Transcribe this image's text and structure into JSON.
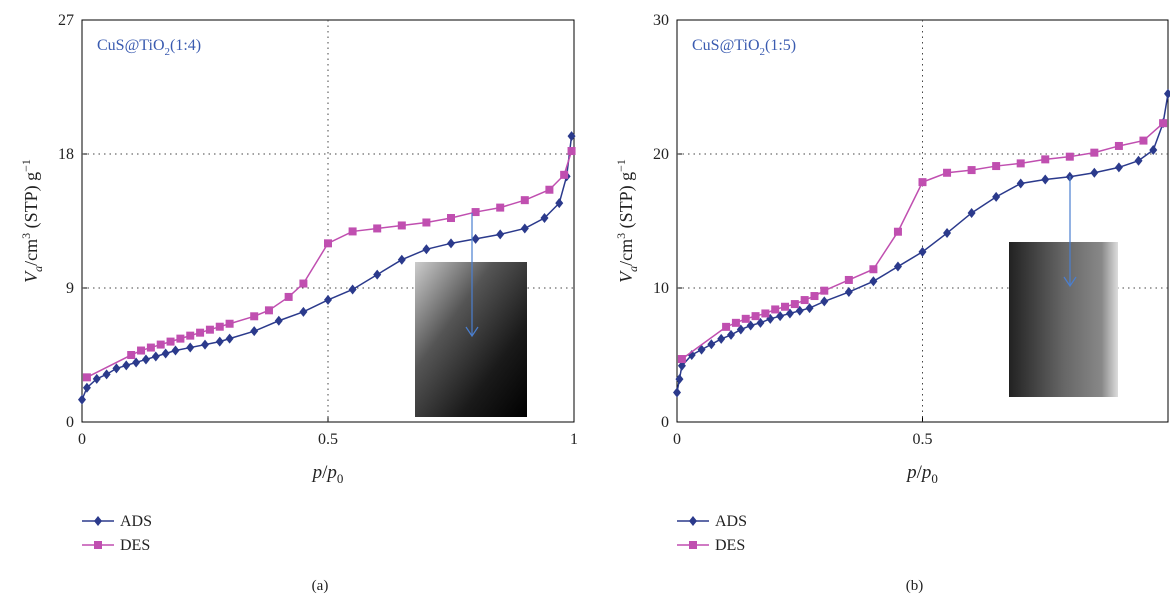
{
  "chart_data": [
    {
      "type": "line",
      "annotation": [
        "CuS@TiO",
        "2",
        "(1:4)"
      ],
      "xlabel": [
        "p",
        "/",
        "p",
        "0"
      ],
      "ylabel": [
        "V",
        "a",
        "/cm",
        "3",
        " (STP) g",
        "−1"
      ],
      "caption": "(a)",
      "xlim": [
        0,
        1
      ],
      "xticks": [
        0,
        0.5,
        1
      ],
      "ylim": [
        0,
        27
      ],
      "yticks": [
        0,
        9,
        18,
        27
      ],
      "grid": true,
      "series": [
        {
          "name": "ADS",
          "color": "#2b3a8c",
          "marker": "diamond",
          "x": [
            0,
            0.01,
            0.03,
            0.05,
            0.07,
            0.09,
            0.11,
            0.13,
            0.15,
            0.17,
            0.19,
            0.22,
            0.25,
            0.28,
            0.3,
            0.35,
            0.4,
            0.45,
            0.5,
            0.55,
            0.6,
            0.65,
            0.7,
            0.75,
            0.8,
            0.85,
            0.9,
            0.94,
            0.97,
            0.985,
            0.995
          ],
          "values": [
            1.5,
            2.3,
            2.9,
            3.2,
            3.6,
            3.8,
            4.0,
            4.2,
            4.4,
            4.6,
            4.8,
            5.0,
            5.2,
            5.4,
            5.6,
            6.1,
            6.8,
            7.4,
            8.2,
            8.9,
            9.9,
            10.9,
            11.6,
            12.0,
            12.3,
            12.6,
            13.0,
            13.7,
            14.7,
            16.5,
            19.2
          ]
        },
        {
          "name": "DES",
          "color": "#c04fb0",
          "marker": "square",
          "x": [
            0.01,
            0.1,
            0.12,
            0.14,
            0.16,
            0.18,
            0.2,
            0.22,
            0.24,
            0.26,
            0.28,
            0.3,
            0.35,
            0.38,
            0.42,
            0.45,
            0.5,
            0.55,
            0.6,
            0.65,
            0.7,
            0.75,
            0.8,
            0.85,
            0.9,
            0.95,
            0.98,
            0.995
          ],
          "values": [
            3.0,
            4.5,
            4.8,
            5.0,
            5.2,
            5.4,
            5.6,
            5.8,
            6.0,
            6.2,
            6.4,
            6.6,
            7.1,
            7.5,
            8.4,
            9.3,
            12.0,
            12.8,
            13.0,
            13.2,
            13.4,
            13.7,
            14.1,
            14.4,
            14.9,
            15.6,
            16.6,
            18.2
          ]
        }
      ]
    },
    {
      "type": "line",
      "annotation": [
        "CuS@TiO",
        "2",
        "(1:5)"
      ],
      "xlabel": [
        "p",
        "/",
        "p",
        "0"
      ],
      "ylabel": [
        "V",
        "a",
        "/cm",
        "3",
        " (STP) g",
        "−1"
      ],
      "caption": "(b)",
      "xlim": [
        0,
        1
      ],
      "xticks": [
        0,
        0.5
      ],
      "ylim": [
        0,
        30
      ],
      "yticks": [
        0,
        10,
        20,
        30
      ],
      "grid": true,
      "series": [
        {
          "name": "ADS",
          "color": "#2b3a8c",
          "marker": "diamond",
          "x": [
            0,
            0.005,
            0.01,
            0.03,
            0.05,
            0.07,
            0.09,
            0.11,
            0.13,
            0.15,
            0.17,
            0.19,
            0.21,
            0.23,
            0.25,
            0.27,
            0.3,
            0.35,
            0.4,
            0.45,
            0.5,
            0.55,
            0.6,
            0.65,
            0.7,
            0.75,
            0.8,
            0.85,
            0.9,
            0.94,
            0.97,
            0.99,
            1.0
          ],
          "values": [
            2.2,
            3.2,
            4.2,
            5.0,
            5.4,
            5.8,
            6.2,
            6.5,
            6.9,
            7.2,
            7.4,
            7.7,
            7.9,
            8.1,
            8.3,
            8.5,
            9.0,
            9.7,
            10.5,
            11.6,
            12.7,
            14.1,
            15.6,
            16.8,
            17.8,
            18.1,
            18.3,
            18.6,
            19.0,
            19.5,
            20.3,
            22.3,
            24.5
          ]
        },
        {
          "name": "DES",
          "color": "#c04fb0",
          "marker": "square",
          "x": [
            0.01,
            0.1,
            0.12,
            0.14,
            0.16,
            0.18,
            0.2,
            0.22,
            0.24,
            0.26,
            0.28,
            0.3,
            0.35,
            0.4,
            0.45,
            0.5,
            0.55,
            0.6,
            0.65,
            0.7,
            0.75,
            0.8,
            0.85,
            0.9,
            0.95,
            0.99
          ],
          "values": [
            4.7,
            7.1,
            7.4,
            7.7,
            7.9,
            8.1,
            8.4,
            8.6,
            8.8,
            9.1,
            9.4,
            9.8,
            10.6,
            11.4,
            14.2,
            17.9,
            18.6,
            18.8,
            19.1,
            19.3,
            19.6,
            19.8,
            20.1,
            20.6,
            21.0,
            22.3
          ]
        }
      ]
    }
  ]
}
